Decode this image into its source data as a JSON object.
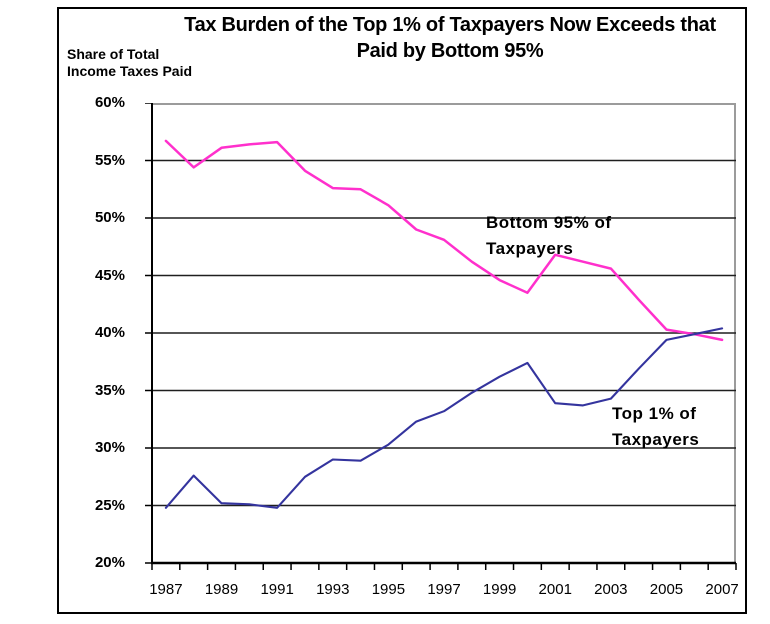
{
  "display": {
    "title": "Tax Burden of the Top 1% of Taxpayers Now Exceeds that\nPaid by Bottom 95%",
    "y_axis_title": "Share of Total\nIncome Taxes Paid",
    "label_bottom95": "Bottom 95% of\nTaxpayers",
    "label_top1": "Top 1% of\nTaxpayers"
  },
  "colors": {
    "bottom95_line": "#ff30cc",
    "top1_line": "#34349e",
    "gridline": "#1f1f1f",
    "plot_border": "#9b9b9b",
    "axis": "#000000"
  },
  "chart_data": {
    "type": "line",
    "title": "Tax Burden of the Top 1% of Taxpayers Now Exceeds that Paid by Bottom 95%",
    "ylabel": "Share of Total Income Taxes Paid",
    "xlabel": "",
    "x": [
      1987,
      1988,
      1989,
      1990,
      1991,
      1992,
      1993,
      1994,
      1995,
      1996,
      1997,
      1998,
      1999,
      2000,
      2001,
      2002,
      2003,
      2004,
      2005,
      2006,
      2007
    ],
    "series": [
      {
        "name": "Bottom 95% of Taxpayers",
        "color": "#ff30cc",
        "values": [
          56.7,
          54.4,
          56.1,
          56.4,
          56.6,
          54.1,
          52.6,
          52.5,
          51.1,
          49.0,
          48.1,
          46.2,
          44.6,
          43.5,
          46.8,
          46.2,
          45.6,
          42.9,
          40.3,
          39.9,
          39.4
        ]
      },
      {
        "name": "Top 1% of Taxpayers",
        "color": "#34349e",
        "values": [
          24.8,
          27.6,
          25.2,
          25.1,
          24.8,
          27.5,
          29.0,
          28.9,
          30.3,
          32.3,
          33.2,
          34.8,
          36.2,
          37.4,
          33.9,
          33.7,
          34.3,
          36.9,
          39.4,
          39.9,
          40.4
        ]
      }
    ],
    "ylim": [
      20,
      60
    ],
    "y_tick_step": 5,
    "y_tick_labels": [
      "60%",
      "55%",
      "50%",
      "45%",
      "40%",
      "35%",
      "30%",
      "25%",
      "20%"
    ],
    "x_tick_labels": [
      "1987",
      "1989",
      "1991",
      "1993",
      "1995",
      "1997",
      "1999",
      "2001",
      "2003",
      "2005",
      "2007"
    ],
    "grid": "horizontal",
    "legend": "inline text annotations"
  }
}
